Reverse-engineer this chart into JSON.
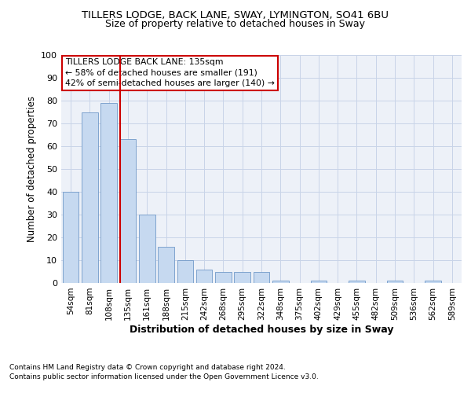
{
  "title1": "TILLERS LODGE, BACK LANE, SWAY, LYMINGTON, SO41 6BU",
  "title2": "Size of property relative to detached houses in Sway",
  "xlabel": "Distribution of detached houses by size in Sway",
  "ylabel": "Number of detached properties",
  "categories": [
    "54sqm",
    "81sqm",
    "108sqm",
    "135sqm",
    "161sqm",
    "188sqm",
    "215sqm",
    "242sqm",
    "268sqm",
    "295sqm",
    "322sqm",
    "348sqm",
    "375sqm",
    "402sqm",
    "429sqm",
    "455sqm",
    "482sqm",
    "509sqm",
    "536sqm",
    "562sqm",
    "589sqm"
  ],
  "values": [
    40,
    75,
    79,
    63,
    30,
    16,
    10,
    6,
    5,
    5,
    5,
    1,
    0,
    1,
    0,
    1,
    0,
    1,
    0,
    1,
    0
  ],
  "bar_color": "#c6d9f0",
  "bar_edge_color": "#7099c8",
  "vline_color": "#cc0000",
  "vline_x_index": 3,
  "annotation_title": "TILLERS LODGE BACK LANE: 135sqm",
  "annotation_line1": "← 58% of detached houses are smaller (191)",
  "annotation_line2": "42% of semi-detached houses are larger (140) →",
  "annotation_box_color": "#ffffff",
  "annotation_box_edge": "#cc0000",
  "footnote1": "Contains HM Land Registry data © Crown copyright and database right 2024.",
  "footnote2": "Contains public sector information licensed under the Open Government Licence v3.0.",
  "ylim": [
    0,
    100
  ],
  "yticks": [
    0,
    10,
    20,
    30,
    40,
    50,
    60,
    70,
    80,
    90,
    100
  ],
  "grid_color": "#c8d4e8",
  "bg_color": "#edf1f8"
}
